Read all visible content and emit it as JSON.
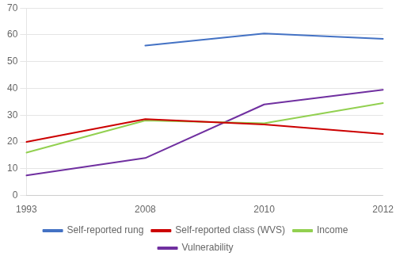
{
  "chart_data": {
    "type": "line",
    "categories": [
      "1993",
      "2008",
      "2010",
      "2012"
    ],
    "series": [
      {
        "name": "Self-reported rung",
        "color": "#4472C4",
        "values": [
          null,
          56,
          60.5,
          58.5
        ]
      },
      {
        "name": "Self-reported class (WVS)",
        "color": "#CC0000",
        "values": [
          20,
          28.5,
          26.5,
          23
        ]
      },
      {
        "name": "Income",
        "color": "#92D050",
        "values": [
          16,
          28,
          27,
          34.5
        ]
      },
      {
        "name": "Vulnerability",
        "color": "#7030A0",
        "values": [
          7.5,
          14,
          34,
          39.5
        ]
      }
    ],
    "ylim": [
      0,
      70
    ],
    "yticks": [
      0,
      10,
      20,
      30,
      40,
      50,
      60,
      70
    ],
    "grid": true,
    "legend": "bottom"
  }
}
